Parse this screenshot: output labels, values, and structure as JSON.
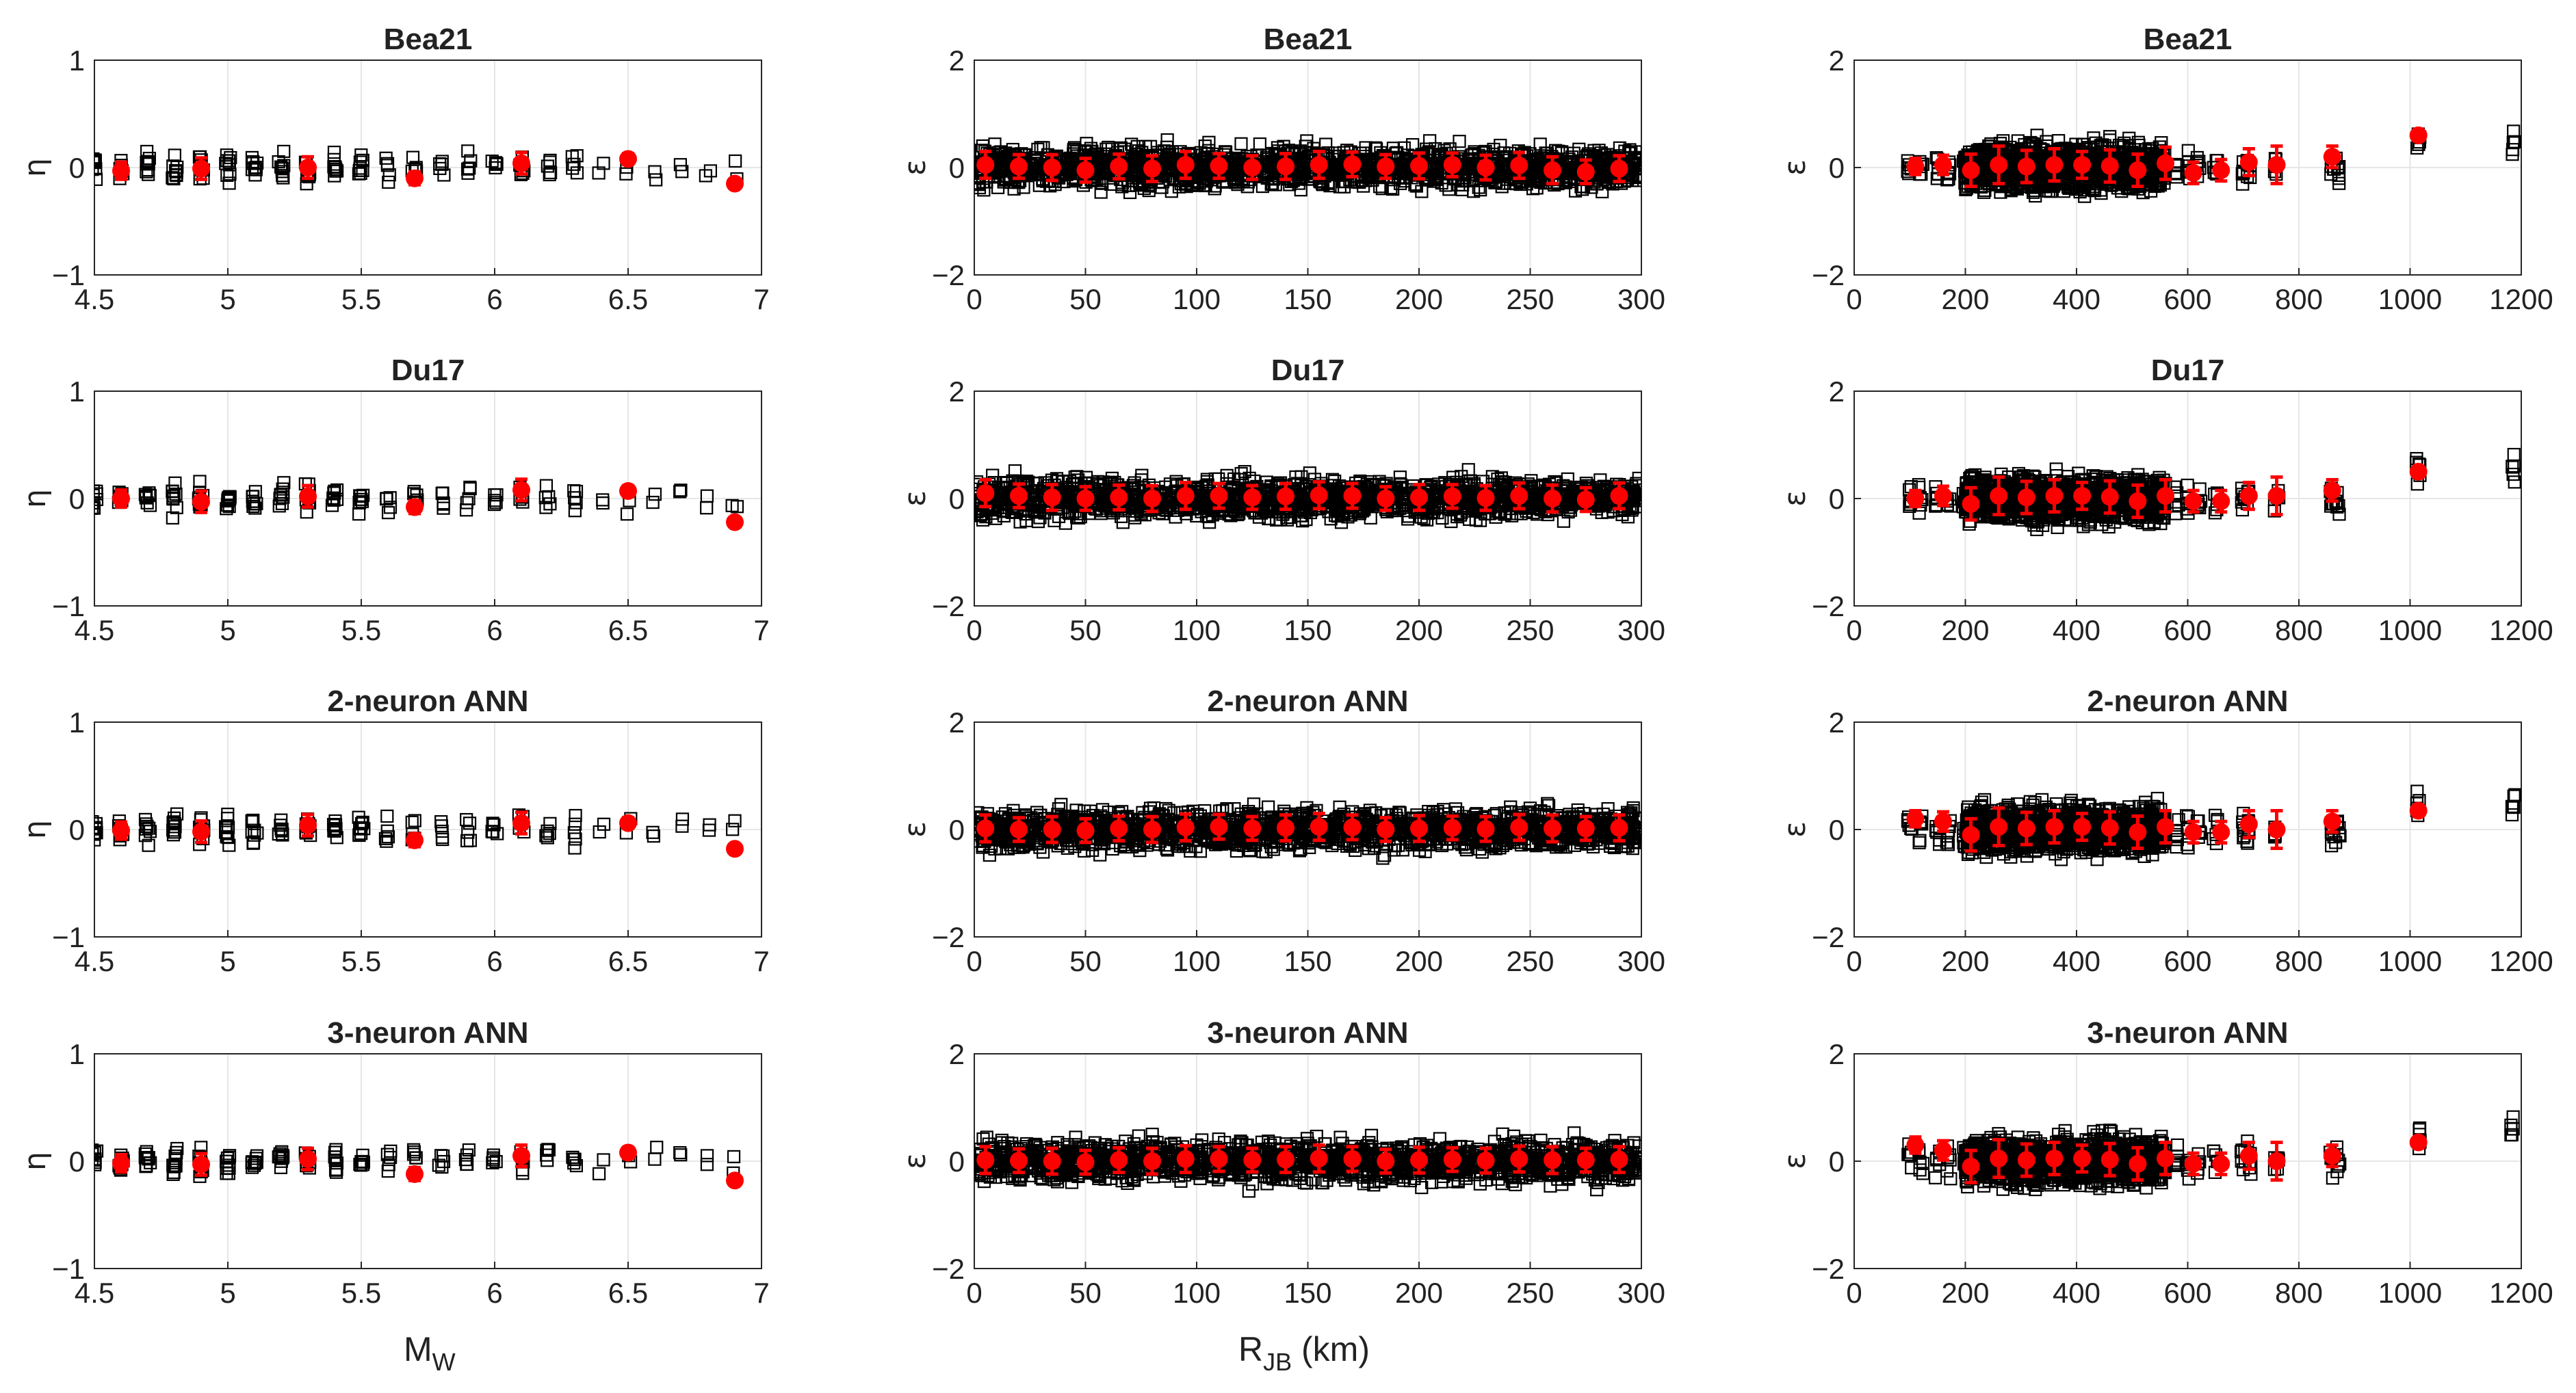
{
  "chart_data": [
    {
      "type": "scatter",
      "panel": "eta-Mw",
      "title": "Bea21",
      "ylabel": "η",
      "xlim": [
        4.5,
        7
      ],
      "ylim": [
        -1,
        1
      ],
      "xticks": [
        "4.5",
        "5",
        "5.5",
        "6",
        "6.5",
        "7"
      ],
      "yticks": [
        "1",
        "0",
        "−1"
      ],
      "grid": true,
      "binned_mean": {
        "x": [
          4.6,
          4.9,
          5.3,
          5.7,
          6.1,
          6.5,
          6.9
        ],
        "y": [
          -0.03,
          -0.01,
          0.0,
          -0.1,
          0.04,
          0.08,
          -0.15
        ],
        "err": [
          0.08,
          0.1,
          0.1,
          0.06,
          0.1,
          0.05,
          0.04
        ]
      }
    },
    {
      "type": "scatter",
      "panel": "eps-Rjb",
      "title": "Bea21",
      "ylabel": "ε",
      "xlim": [
        0,
        300
      ],
      "ylim": [
        -2,
        2
      ],
      "xticks": [
        "0",
        "50",
        "100",
        "150",
        "200",
        "250",
        "300"
      ],
      "yticks": [
        "2",
        "0",
        "−2"
      ],
      "grid": true,
      "binned_mean": {
        "x": [
          5,
          20,
          35,
          50,
          65,
          80,
          95,
          110,
          125,
          140,
          155,
          170,
          185,
          200,
          215,
          230,
          245,
          260,
          275,
          290
        ],
        "y": [
          0.05,
          0.02,
          0.0,
          -0.05,
          0.02,
          -0.02,
          0.05,
          0.03,
          0.0,
          0.02,
          0.05,
          0.06,
          0.02,
          0.03,
          0.05,
          0.0,
          0.04,
          -0.05,
          -0.08,
          -0.02
        ],
        "err": [
          0.25,
          0.22,
          0.24,
          0.22,
          0.23,
          0.24,
          0.25,
          0.23,
          0.22,
          0.24,
          0.25,
          0.23,
          0.22,
          0.24,
          0.22,
          0.23,
          0.24,
          0.25,
          0.22,
          0.24
        ]
      }
    },
    {
      "type": "scatter",
      "panel": "eps-Rjb-long",
      "title": "Bea21",
      "ylabel": "ε",
      "xlim": [
        0,
        1200
      ],
      "ylim": [
        -2,
        2
      ],
      "xticks": [
        "0",
        "200",
        "400",
        "600",
        "800",
        "1000",
        "1200"
      ],
      "yticks": [
        "2",
        "0",
        "−2"
      ],
      "grid": true,
      "binned_mean": {
        "x": [
          110,
          160,
          210,
          260,
          310,
          360,
          410,
          460,
          510,
          560,
          610,
          660,
          710,
          760,
          860,
          1015
        ],
        "y": [
          0.02,
          0.05,
          -0.05,
          0.05,
          0.02,
          0.05,
          0.05,
          0.03,
          -0.05,
          0.08,
          -0.1,
          -0.05,
          0.1,
          0.05,
          0.2,
          0.6
        ],
        "err": [
          0.15,
          0.18,
          0.3,
          0.35,
          0.3,
          0.3,
          0.25,
          0.3,
          0.3,
          0.3,
          0.2,
          0.2,
          0.25,
          0.35,
          0.2,
          0.05
        ]
      }
    },
    {
      "type": "scatter",
      "panel": "eta-Mw",
      "title": "Du17",
      "ylabel": "η",
      "xlim": [
        4.5,
        7
      ],
      "ylim": [
        -1,
        1
      ],
      "xticks": [
        "4.5",
        "5",
        "5.5",
        "6",
        "6.5",
        "7"
      ],
      "yticks": [
        "1",
        "0",
        "−1"
      ],
      "grid": true,
      "binned_mean": {
        "x": [
          4.6,
          4.9,
          5.3,
          5.7,
          6.1,
          6.5,
          6.9
        ],
        "y": [
          0.0,
          -0.03,
          0.02,
          -0.08,
          0.08,
          0.07,
          -0.22
        ],
        "err": [
          0.08,
          0.1,
          0.1,
          0.06,
          0.1,
          0.05,
          0.04
        ]
      }
    },
    {
      "type": "scatter",
      "panel": "eps-Rjb",
      "title": "Du17",
      "ylabel": "ε",
      "xlim": [
        0,
        300
      ],
      "ylim": [
        -2,
        2
      ],
      "xticks": [
        "0",
        "50",
        "100",
        "150",
        "200",
        "250",
        "300"
      ],
      "yticks": [
        "2",
        "0",
        "−2"
      ],
      "grid": true,
      "binned_mean": {
        "x": [
          5,
          20,
          35,
          50,
          65,
          80,
          95,
          110,
          125,
          140,
          155,
          170,
          185,
          200,
          215,
          230,
          245,
          260,
          275,
          290
        ],
        "y": [
          0.1,
          0.05,
          0.02,
          0.0,
          0.02,
          0.0,
          0.05,
          0.05,
          0.02,
          0.04,
          0.06,
          0.05,
          0.0,
          0.02,
          0.04,
          0.01,
          0.05,
          0.0,
          -0.02,
          0.05
        ],
        "err": [
          0.25,
          0.22,
          0.24,
          0.22,
          0.23,
          0.24,
          0.25,
          0.23,
          0.22,
          0.24,
          0.25,
          0.23,
          0.22,
          0.24,
          0.22,
          0.23,
          0.24,
          0.25,
          0.22,
          0.24
        ]
      }
    },
    {
      "type": "scatter",
      "panel": "eps-Rjb-long",
      "title": "Du17",
      "ylabel": "ε",
      "xlim": [
        0,
        1200
      ],
      "ylim": [
        -2,
        2
      ],
      "xticks": [
        "0",
        "200",
        "400",
        "600",
        "800",
        "1000",
        "1200"
      ],
      "yticks": [
        "2",
        "0",
        "−2"
      ],
      "grid": true,
      "binned_mean": {
        "x": [
          110,
          160,
          210,
          260,
          310,
          360,
          410,
          460,
          510,
          560,
          610,
          660,
          710,
          760,
          860,
          1015
        ],
        "y": [
          0.0,
          0.05,
          -0.1,
          0.05,
          0.02,
          0.05,
          0.05,
          0.03,
          -0.05,
          0.05,
          -0.05,
          -0.05,
          0.05,
          0.05,
          0.15,
          0.5
        ],
        "err": [
          0.15,
          0.18,
          0.3,
          0.35,
          0.3,
          0.3,
          0.25,
          0.3,
          0.3,
          0.3,
          0.2,
          0.2,
          0.25,
          0.35,
          0.2,
          0.05
        ]
      }
    },
    {
      "type": "scatter",
      "panel": "eta-Mw",
      "title": "2-neuron ANN",
      "ylabel": "η",
      "xlim": [
        4.5,
        7
      ],
      "ylim": [
        -1,
        1
      ],
      "xticks": [
        "4.5",
        "5",
        "5.5",
        "6",
        "6.5",
        "7"
      ],
      "yticks": [
        "1",
        "0",
        "−1"
      ],
      "grid": true,
      "binned_mean": {
        "x": [
          4.6,
          4.9,
          5.3,
          5.7,
          6.1,
          6.5,
          6.9
        ],
        "y": [
          -0.01,
          -0.02,
          0.04,
          -0.1,
          0.06,
          0.06,
          -0.18
        ],
        "err": [
          0.08,
          0.1,
          0.1,
          0.06,
          0.1,
          0.05,
          0.04
        ]
      }
    },
    {
      "type": "scatter",
      "panel": "eps-Rjb",
      "title": "2-neuron ANN",
      "ylabel": "ε",
      "xlim": [
        0,
        300
      ],
      "ylim": [
        -2,
        2
      ],
      "xticks": [
        "0",
        "50",
        "100",
        "150",
        "200",
        "250",
        "300"
      ],
      "yticks": [
        "2",
        "0",
        "−2"
      ],
      "grid": true,
      "binned_mean": {
        "x": [
          5,
          20,
          35,
          50,
          65,
          80,
          95,
          110,
          125,
          140,
          155,
          170,
          185,
          200,
          215,
          230,
          245,
          260,
          275,
          290
        ],
        "y": [
          0.02,
          0.0,
          0.0,
          -0.02,
          0.02,
          0.0,
          0.04,
          0.05,
          0.02,
          0.03,
          0.05,
          0.04,
          0.0,
          0.02,
          0.03,
          0.01,
          0.04,
          0.02,
          0.02,
          0.03
        ],
        "err": [
          0.25,
          0.22,
          0.24,
          0.22,
          0.23,
          0.24,
          0.25,
          0.23,
          0.22,
          0.24,
          0.25,
          0.23,
          0.22,
          0.24,
          0.22,
          0.23,
          0.24,
          0.25,
          0.22,
          0.24
        ]
      }
    },
    {
      "type": "scatter",
      "panel": "eps-Rjb-long",
      "title": "2-neuron ANN",
      "ylabel": "ε",
      "xlim": [
        0,
        1200
      ],
      "ylim": [
        -2,
        2
      ],
      "xticks": [
        "0",
        "200",
        "400",
        "600",
        "800",
        "1000",
        "1200"
      ],
      "yticks": [
        "2",
        "0",
        "−2"
      ],
      "grid": true,
      "binned_mean": {
        "x": [
          110,
          160,
          210,
          260,
          310,
          360,
          410,
          460,
          510,
          560,
          610,
          660,
          710,
          760,
          860,
          1015
        ],
        "y": [
          0.2,
          0.15,
          -0.1,
          0.05,
          0.02,
          0.05,
          0.05,
          0.03,
          -0.05,
          0.05,
          -0.05,
          -0.05,
          0.1,
          0.0,
          0.15,
          0.35
        ],
        "err": [
          0.15,
          0.18,
          0.3,
          0.35,
          0.3,
          0.3,
          0.25,
          0.3,
          0.3,
          0.3,
          0.2,
          0.2,
          0.25,
          0.35,
          0.2,
          0.05
        ]
      }
    },
    {
      "type": "scatter",
      "panel": "eta-Mw",
      "title": "3-neuron ANN",
      "ylabel": "η",
      "xlim": [
        4.5,
        7
      ],
      "ylim": [
        -1,
        1
      ],
      "xticks": [
        "4.5",
        "5",
        "5.5",
        "6",
        "6.5",
        "7"
      ],
      "yticks": [
        "1",
        "0",
        "−1"
      ],
      "grid": true,
      "binned_mean": {
        "x": [
          4.6,
          4.9,
          5.3,
          5.7,
          6.1,
          6.5,
          6.9
        ],
        "y": [
          -0.02,
          -0.03,
          0.02,
          -0.12,
          0.05,
          0.08,
          -0.18
        ],
        "err": [
          0.08,
          0.1,
          0.1,
          0.06,
          0.1,
          0.05,
          0.04
        ]
      }
    },
    {
      "type": "scatter",
      "panel": "eps-Rjb",
      "title": "3-neuron ANN",
      "ylabel": "ε",
      "xlim": [
        0,
        300
      ],
      "ylim": [
        -2,
        2
      ],
      "xticks": [
        "0",
        "50",
        "100",
        "150",
        "200",
        "250",
        "300"
      ],
      "yticks": [
        "2",
        "0",
        "−2"
      ],
      "grid": true,
      "binned_mean": {
        "x": [
          5,
          20,
          35,
          50,
          65,
          80,
          95,
          110,
          125,
          140,
          155,
          170,
          185,
          200,
          215,
          230,
          245,
          260,
          275,
          290
        ],
        "y": [
          0.02,
          0.01,
          0.0,
          -0.02,
          0.02,
          0.0,
          0.04,
          0.04,
          0.02,
          0.03,
          0.05,
          0.04,
          0.0,
          0.02,
          0.03,
          0.01,
          0.04,
          0.02,
          0.02,
          0.03
        ],
        "err": [
          0.25,
          0.22,
          0.24,
          0.22,
          0.23,
          0.24,
          0.25,
          0.23,
          0.22,
          0.24,
          0.25,
          0.23,
          0.22,
          0.24,
          0.22,
          0.23,
          0.24,
          0.25,
          0.22,
          0.24
        ]
      }
    },
    {
      "type": "scatter",
      "panel": "eps-Rjb-long",
      "title": "3-neuron ANN",
      "ylabel": "ε",
      "xlim": [
        0,
        1200
      ],
      "ylim": [
        -2,
        2
      ],
      "xticks": [
        "0",
        "200",
        "400",
        "600",
        "800",
        "1000",
        "1200"
      ],
      "yticks": [
        "2",
        "0",
        "−2"
      ],
      "grid": true,
      "binned_mean": {
        "x": [
          110,
          160,
          210,
          260,
          310,
          360,
          410,
          460,
          510,
          560,
          610,
          660,
          710,
          760,
          860,
          1015
        ],
        "y": [
          0.3,
          0.2,
          -0.1,
          0.05,
          0.02,
          0.05,
          0.05,
          0.03,
          -0.05,
          0.05,
          -0.05,
          -0.05,
          0.1,
          0.0,
          0.1,
          0.35
        ],
        "err": [
          0.15,
          0.18,
          0.3,
          0.35,
          0.3,
          0.3,
          0.25,
          0.3,
          0.3,
          0.3,
          0.2,
          0.2,
          0.25,
          0.35,
          0.2,
          0.05
        ]
      }
    }
  ],
  "xlabels": {
    "mw": "M",
    "mw_sub": "W",
    "rjb": "R",
    "rjb_sub": "JB",
    "rjb_unit": " (km)"
  },
  "colors": {
    "points": "#000000",
    "mean": "#ff0000",
    "grid": "#e6e6e6"
  }
}
